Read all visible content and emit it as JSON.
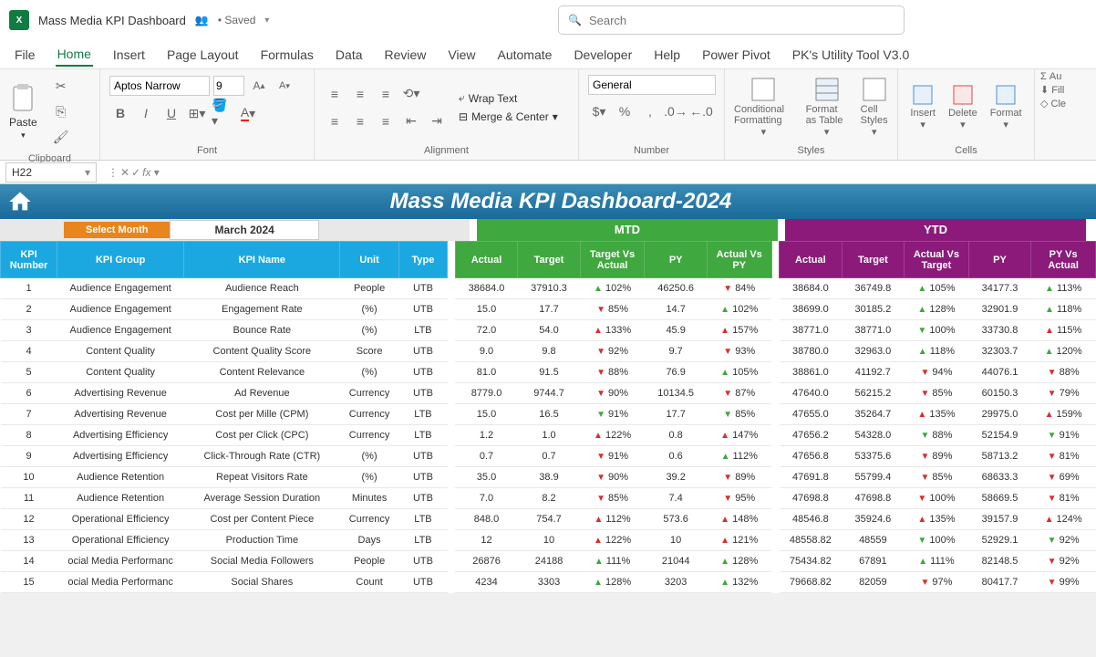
{
  "titlebar": {
    "doc_title": "Mass Media KPI Dashboard",
    "saved_label": "• Saved",
    "search_placeholder": "Search"
  },
  "menu": [
    "File",
    "Home",
    "Insert",
    "Page Layout",
    "Formulas",
    "Data",
    "Review",
    "View",
    "Automate",
    "Developer",
    "Help",
    "Power Pivot",
    "PK's Utility Tool V3.0"
  ],
  "menu_active_index": 1,
  "ribbon": {
    "paste_label": "Paste",
    "clipboard_label": "Clipboard",
    "font_name": "Aptos Narrow",
    "font_size": "9",
    "font_label": "Font",
    "wrap_label": "Wrap Text",
    "merge_label": "Merge & Center",
    "alignment_label": "Alignment",
    "number_format": "General",
    "number_label": "Number",
    "cond_fmt": "Conditional Formatting",
    "fmt_table": "Format as Table",
    "cell_styles": "Cell Styles",
    "styles_label": "Styles",
    "insert_label": "Insert",
    "delete_label": "Delete",
    "format_label": "Format",
    "cells_label": "Cells",
    "autosum": "Au",
    "fill": "Fill",
    "clear": "Cle"
  },
  "formula": {
    "cell_ref": "H22"
  },
  "dashboard": {
    "title": "Mass Media KPI Dashboard-2024",
    "select_month_label": "Select Month",
    "month_value": "March 2024",
    "mtd_label": "MTD",
    "ytd_label": "YTD"
  },
  "columns": {
    "kpi_number": "KPI Number",
    "kpi_group": "KPI Group",
    "kpi_name": "KPI Name",
    "unit": "Unit",
    "type": "Type",
    "mtd_actual": "Actual",
    "mtd_target": "Target",
    "mtd_tva": "Target Vs Actual",
    "mtd_py": "PY",
    "mtd_avp": "Actual Vs PY",
    "ytd_actual": "Actual",
    "ytd_target": "Target",
    "ytd_avt": "Actual Vs Target",
    "ytd_py": "PY",
    "ytd_pva": "PY Vs Actual"
  },
  "rows": [
    {
      "n": "1",
      "g": "Audience Engagement",
      "name": "Audience Reach",
      "u": "People",
      "t": "UTB",
      "ma": "38684.0",
      "mt": "37910.3",
      "mtva": "102%",
      "mtvad": "up",
      "mpy": "46250.6",
      "mavp": "84%",
      "mavpd": "down",
      "ya": "38684.0",
      "yt": "36749.8",
      "yavt": "105%",
      "yavtd": "up",
      "ypy": "34177.3",
      "ypva": "113%",
      "ypvad": "up"
    },
    {
      "n": "2",
      "g": "Audience Engagement",
      "name": "Engagement Rate",
      "u": "(%)",
      "t": "UTB",
      "ma": "15.0",
      "mt": "17.7",
      "mtva": "85%",
      "mtvad": "down",
      "mpy": "14.7",
      "mavp": "102%",
      "mavpd": "up",
      "ya": "38699.0",
      "yt": "30185.2",
      "yavt": "128%",
      "yavtd": "up",
      "ypy": "32901.9",
      "ypva": "118%",
      "ypvad": "up"
    },
    {
      "n": "3",
      "g": "Audience Engagement",
      "name": "Bounce Rate",
      "u": "(%)",
      "t": "LTB",
      "ma": "72.0",
      "mt": "54.0",
      "mtva": "133%",
      "mtvad": "upred",
      "mpy": "45.9",
      "mavp": "157%",
      "mavpd": "upred",
      "ya": "38771.0",
      "yt": "38771.0",
      "yavt": "100%",
      "yavtd": "downg",
      "ypy": "33730.8",
      "ypva": "115%",
      "ypvad": "upred"
    },
    {
      "n": "4",
      "g": "Content Quality",
      "name": "Content Quality Score",
      "u": "Score",
      "t": "UTB",
      "ma": "9.0",
      "mt": "9.8",
      "mtva": "92%",
      "mtvad": "down",
      "mpy": "9.7",
      "mavp": "93%",
      "mavpd": "down",
      "ya": "38780.0",
      "yt": "32963.0",
      "yavt": "118%",
      "yavtd": "up",
      "ypy": "32303.7",
      "ypva": "120%",
      "ypvad": "up"
    },
    {
      "n": "5",
      "g": "Content Quality",
      "name": "Content Relevance",
      "u": "(%)",
      "t": "UTB",
      "ma": "81.0",
      "mt": "91.5",
      "mtva": "88%",
      "mtvad": "down",
      "mpy": "76.9",
      "mavp": "105%",
      "mavpd": "up",
      "ya": "38861.0",
      "yt": "41192.7",
      "yavt": "94%",
      "yavtd": "down",
      "ypy": "44076.1",
      "ypva": "88%",
      "ypvad": "down"
    },
    {
      "n": "6",
      "g": "Advertising Revenue",
      "name": "Ad Revenue",
      "u": "Currency",
      "t": "UTB",
      "ma": "8779.0",
      "mt": "9744.7",
      "mtva": "90%",
      "mtvad": "down",
      "mpy": "10134.5",
      "mavp": "87%",
      "mavpd": "down",
      "ya": "47640.0",
      "yt": "56215.2",
      "yavt": "85%",
      "yavtd": "down",
      "ypy": "60150.3",
      "ypva": "79%",
      "ypvad": "down"
    },
    {
      "n": "7",
      "g": "Advertising Revenue",
      "name": "Cost per Mille (CPM)",
      "u": "Currency",
      "t": "LTB",
      "ma": "15.0",
      "mt": "16.5",
      "mtva": "91%",
      "mtvad": "downg",
      "mpy": "17.7",
      "mavp": "85%",
      "mavpd": "downg",
      "ya": "47655.0",
      "yt": "35264.7",
      "yavt": "135%",
      "yavtd": "upred",
      "ypy": "29975.0",
      "ypva": "159%",
      "ypvad": "upred"
    },
    {
      "n": "8",
      "g": "Advertising Efficiency",
      "name": "Cost per Click (CPC)",
      "u": "Currency",
      "t": "LTB",
      "ma": "1.2",
      "mt": "1.0",
      "mtva": "122%",
      "mtvad": "upred",
      "mpy": "0.8",
      "mavp": "147%",
      "mavpd": "upred",
      "ya": "47656.2",
      "yt": "54328.0",
      "yavt": "88%",
      "yavtd": "downg",
      "ypy": "52154.9",
      "ypva": "91%",
      "ypvad": "downg"
    },
    {
      "n": "9",
      "g": "Advertising Efficiency",
      "name": "Click-Through Rate (CTR)",
      "u": "(%)",
      "t": "UTB",
      "ma": "0.7",
      "mt": "0.7",
      "mtva": "91%",
      "mtvad": "down",
      "mpy": "0.6",
      "mavp": "112%",
      "mavpd": "up",
      "ya": "47656.8",
      "yt": "53375.6",
      "yavt": "89%",
      "yavtd": "down",
      "ypy": "58713.2",
      "ypva": "81%",
      "ypvad": "down"
    },
    {
      "n": "10",
      "g": "Audience Retention",
      "name": "Repeat Visitors Rate",
      "u": "(%)",
      "t": "UTB",
      "ma": "35.0",
      "mt": "38.9",
      "mtva": "90%",
      "mtvad": "down",
      "mpy": "39.2",
      "mavp": "89%",
      "mavpd": "down",
      "ya": "47691.8",
      "yt": "55799.4",
      "yavt": "85%",
      "yavtd": "down",
      "ypy": "68633.3",
      "ypva": "69%",
      "ypvad": "down"
    },
    {
      "n": "11",
      "g": "Audience Retention",
      "name": "Average Session Duration",
      "u": "Minutes",
      "t": "UTB",
      "ma": "7.0",
      "mt": "8.2",
      "mtva": "85%",
      "mtvad": "down",
      "mpy": "7.4",
      "mavp": "95%",
      "mavpd": "down",
      "ya": "47698.8",
      "yt": "47698.8",
      "yavt": "100%",
      "yavtd": "down",
      "ypy": "58669.5",
      "ypva": "81%",
      "ypvad": "down"
    },
    {
      "n": "12",
      "g": "Operational Efficiency",
      "name": "Cost per Content Piece",
      "u": "Currency",
      "t": "LTB",
      "ma": "848.0",
      "mt": "754.7",
      "mtva": "112%",
      "mtvad": "upred",
      "mpy": "573.6",
      "mavp": "148%",
      "mavpd": "upred",
      "ya": "48546.8",
      "yt": "35924.6",
      "yavt": "135%",
      "yavtd": "upred",
      "ypy": "39157.9",
      "ypva": "124%",
      "ypvad": "upred"
    },
    {
      "n": "13",
      "g": "Operational Efficiency",
      "name": "Production Time",
      "u": "Days",
      "t": "LTB",
      "ma": "12",
      "mt": "10",
      "mtva": "122%",
      "mtvad": "upred",
      "mpy": "10",
      "mavp": "121%",
      "mavpd": "upred",
      "ya": "48558.82",
      "yt": "48559",
      "yavt": "100%",
      "yavtd": "downg",
      "ypy": "52929.1",
      "ypva": "92%",
      "ypvad": "downg"
    },
    {
      "n": "14",
      "g": "ocial Media Performanc",
      "name": "Social Media Followers",
      "u": "People",
      "t": "UTB",
      "ma": "26876",
      "mt": "24188",
      "mtva": "111%",
      "mtvad": "up",
      "mpy": "21044",
      "mavp": "128%",
      "mavpd": "up",
      "ya": "75434.82",
      "yt": "67891",
      "yavt": "111%",
      "yavtd": "up",
      "ypy": "82148.5",
      "ypva": "92%",
      "ypvad": "down"
    },
    {
      "n": "15",
      "g": "ocial Media Performanc",
      "name": "Social Shares",
      "u": "Count",
      "t": "UTB",
      "ma": "4234",
      "mt": "3303",
      "mtva": "128%",
      "mtvad": "up",
      "mpy": "3203",
      "mavp": "132%",
      "mavpd": "up",
      "ya": "79668.82",
      "yt": "82059",
      "yavt": "97%",
      "yavtd": "down",
      "ypy": "80417.7",
      "ypva": "99%",
      "ypvad": "down"
    }
  ]
}
